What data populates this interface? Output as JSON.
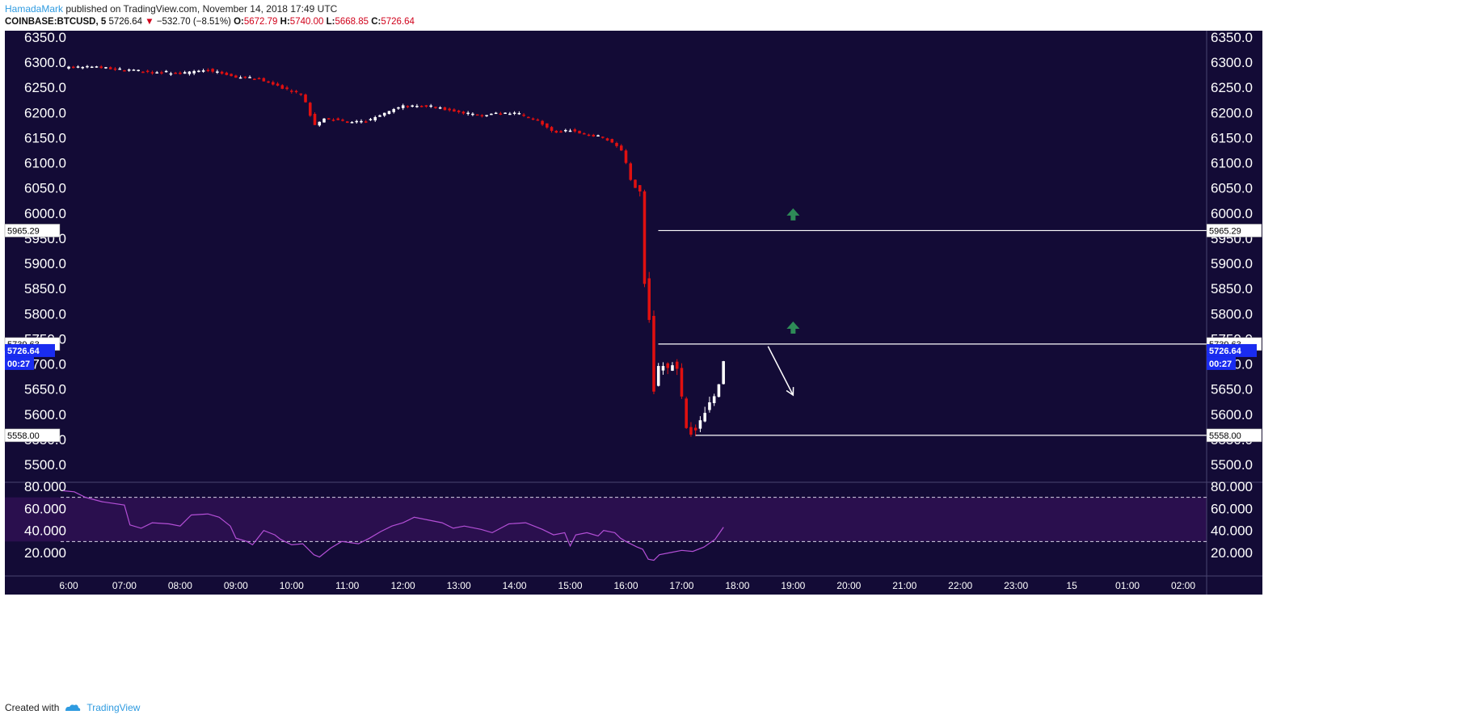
{
  "header": {
    "author": "HamadaMark",
    "published_text": " published on TradingView.com, November 14, 2018 17:49 UTC",
    "symbol": "COINBASE:BTCUSD, 5",
    "last": "5726.64",
    "change_arrow": "▼",
    "change": "−532.70 (−8.51%)",
    "o_label": "O:",
    "o": "5672.79",
    "h_label": "H:",
    "h": "5740.00",
    "l_label": "L:",
    "l": "5668.85",
    "c_label": "C:",
    "c": "5726.64"
  },
  "footer": {
    "created_with": "Created with",
    "brand": "TradingView"
  },
  "colors": {
    "background": "#130b36",
    "up_candle": "#ffffff",
    "down_candle": "#e01010",
    "rsi_line": "#b34fd6",
    "rsi_band": "#2a0f4e",
    "level_line": "#ffffff",
    "green_arrow": "#2e8b57",
    "price_tag": "#1a2cf0"
  },
  "chart_data": [
    {
      "type": "candlestick",
      "title": "",
      "ylim": [
        5480,
        6360
      ],
      "y_ticks": [
        "6350.0",
        "6300.0",
        "6250.0",
        "6200.0",
        "6150.0",
        "6100.0",
        "6050.0",
        "6000.0",
        "5950.0",
        "5900.0",
        "5850.0",
        "5800.0",
        "5750.0",
        "5700.0",
        "5650.0",
        "5600.0",
        "5550.0",
        "5500.0"
      ],
      "x_range_hours": [
        5.8,
        26.4
      ],
      "x_ticks": [
        {
          "t": 6,
          "label": "6:00"
        },
        {
          "t": 7,
          "label": "07:00"
        },
        {
          "t": 8,
          "label": "08:00"
        },
        {
          "t": 9,
          "label": "09:00"
        },
        {
          "t": 10,
          "label": "10:00"
        },
        {
          "t": 11,
          "label": "11:00"
        },
        {
          "t": 12,
          "label": "12:00"
        },
        {
          "t": 13,
          "label": "13:00"
        },
        {
          "t": 14,
          "label": "14:00"
        },
        {
          "t": 15,
          "label": "15:00"
        },
        {
          "t": 16,
          "label": "16:00"
        },
        {
          "t": 17,
          "label": "17:00"
        },
        {
          "t": 18,
          "label": "18:00"
        },
        {
          "t": 19,
          "label": "19:00"
        },
        {
          "t": 20,
          "label": "20:00"
        },
        {
          "t": 21,
          "label": "21:00"
        },
        {
          "t": 22,
          "label": "22:00"
        },
        {
          "t": 23,
          "label": "23:00"
        },
        {
          "t": 24,
          "label": "15"
        },
        {
          "t": 25,
          "label": "01:00"
        },
        {
          "t": 26,
          "label": "02:00"
        }
      ],
      "price_path": [
        [
          6.0,
          6290
        ],
        [
          6.5,
          6290
        ],
        [
          7.0,
          6285
        ],
        [
          7.5,
          6280
        ],
        [
          8.0,
          6278
        ],
        [
          8.5,
          6285
        ],
        [
          9.0,
          6270
        ],
        [
          9.4,
          6268
        ],
        [
          9.8,
          6250
        ],
        [
          10.2,
          6235
        ],
        [
          10.4,
          6175
        ],
        [
          10.6,
          6190
        ],
        [
          11.0,
          6180
        ],
        [
          11.4,
          6185
        ],
        [
          12.0,
          6215
        ],
        [
          12.6,
          6210
        ],
        [
          13.0,
          6200
        ],
        [
          13.5,
          6195
        ],
        [
          14.0,
          6200
        ],
        [
          14.4,
          6185
        ],
        [
          14.7,
          6160
        ],
        [
          15.0,
          6165
        ],
        [
          15.3,
          6155
        ],
        [
          15.6,
          6150
        ],
        [
          15.9,
          6130
        ],
        [
          16.0,
          6100
        ],
        [
          16.1,
          6060
        ],
        [
          16.25,
          6040
        ],
        [
          16.3,
          5880
        ],
        [
          16.4,
          5830
        ],
        [
          16.45,
          5700
        ],
        [
          16.5,
          5650
        ],
        [
          16.6,
          5700
        ],
        [
          16.75,
          5690
        ],
        [
          16.85,
          5705
        ],
        [
          16.95,
          5680
        ],
        [
          17.05,
          5580
        ],
        [
          17.2,
          5560
        ],
        [
          17.3,
          5580
        ],
        [
          17.4,
          5600
        ],
        [
          17.5,
          5620
        ],
        [
          17.6,
          5640
        ],
        [
          17.7,
          5670
        ],
        [
          17.78,
          5726.64
        ]
      ],
      "levels": [
        {
          "price": 5965.29,
          "label": "5965.29",
          "start_t": 16.58
        },
        {
          "price": 5739.63,
          "label": "5739.63",
          "start_t": 16.58
        },
        {
          "price": 5558.0,
          "label": "5558.00",
          "start_t": 17.25
        }
      ],
      "last_price": {
        "price": 5726.64,
        "label": "5726.64",
        "countdown": "00:27"
      },
      "annotations": [
        {
          "type": "arrow-up",
          "t": 19.0,
          "price": 5995
        },
        {
          "type": "arrow-up",
          "t": 19.0,
          "price": 5770
        },
        {
          "type": "arrow-down-line",
          "from_t": 18.55,
          "from_price": 5735,
          "to_t": 19.0,
          "to_price": 5638
        }
      ]
    },
    {
      "type": "line",
      "title": "",
      "ylim": [
        5,
        83
      ],
      "y_ticks": [
        "80.000",
        "60.000",
        "40.000",
        "20.000"
      ],
      "bands": [
        30,
        70
      ],
      "series": [
        {
          "values": [
            [
              5.9,
              76
            ],
            [
              6.1,
              75
            ],
            [
              6.3,
              70
            ],
            [
              6.6,
              66
            ],
            [
              7.0,
              63
            ],
            [
              7.1,
              45
            ],
            [
              7.3,
              42
            ],
            [
              7.5,
              47
            ],
            [
              7.8,
              46
            ],
            [
              8.0,
              44
            ],
            [
              8.2,
              54
            ],
            [
              8.5,
              55
            ],
            [
              8.7,
              52
            ],
            [
              8.9,
              44
            ],
            [
              9.0,
              33
            ],
            [
              9.2,
              30
            ],
            [
              9.3,
              27
            ],
            [
              9.5,
              40
            ],
            [
              9.7,
              36
            ],
            [
              9.8,
              32
            ],
            [
              10.0,
              27
            ],
            [
              10.2,
              28
            ],
            [
              10.4,
              18
            ],
            [
              10.5,
              16
            ],
            [
              10.7,
              24
            ],
            [
              10.9,
              30
            ],
            [
              11.2,
              28
            ],
            [
              11.4,
              33
            ],
            [
              11.6,
              39
            ],
            [
              11.8,
              44
            ],
            [
              12.0,
              47
            ],
            [
              12.2,
              52
            ],
            [
              12.5,
              49
            ],
            [
              12.7,
              47
            ],
            [
              12.9,
              42
            ],
            [
              13.1,
              44
            ],
            [
              13.4,
              41
            ],
            [
              13.6,
              38
            ],
            [
              13.9,
              46
            ],
            [
              14.2,
              47
            ],
            [
              14.5,
              41
            ],
            [
              14.7,
              36
            ],
            [
              14.9,
              38
            ],
            [
              15.0,
              26
            ],
            [
              15.1,
              36
            ],
            [
              15.3,
              38
            ],
            [
              15.5,
              35
            ],
            [
              15.6,
              40
            ],
            [
              15.8,
              38
            ],
            [
              15.9,
              33
            ],
            [
              16.0,
              30
            ],
            [
              16.2,
              25
            ],
            [
              16.3,
              23
            ],
            [
              16.4,
              14
            ],
            [
              16.5,
              13
            ],
            [
              16.6,
              18
            ],
            [
              16.8,
              20
            ],
            [
              17.0,
              22
            ],
            [
              17.2,
              21
            ],
            [
              17.4,
              25
            ],
            [
              17.6,
              32
            ],
            [
              17.75,
              43
            ]
          ]
        }
      ]
    }
  ]
}
